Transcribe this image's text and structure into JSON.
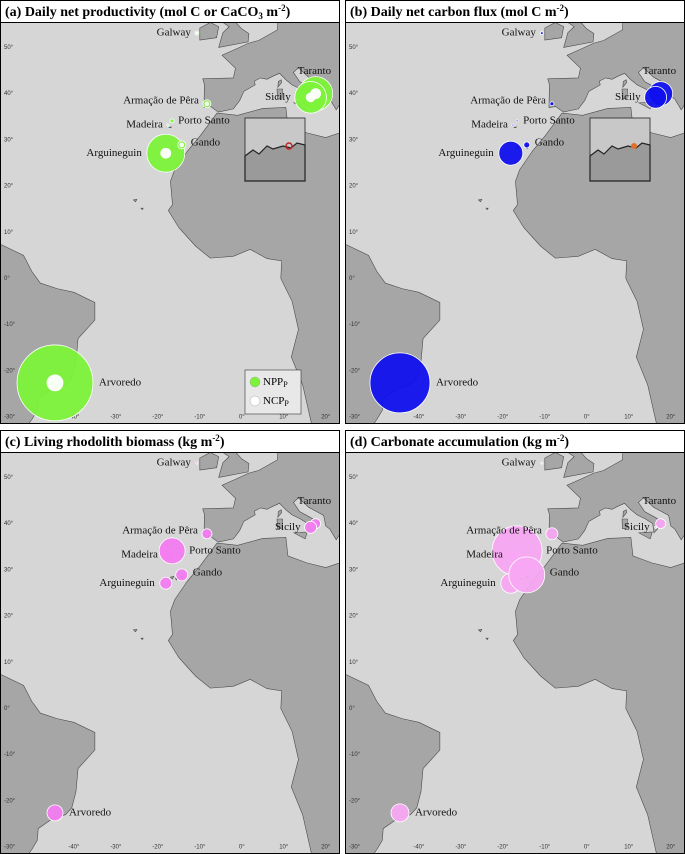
{
  "map": {
    "xlim": [
      -57.6,
      23.4
    ],
    "ylim": [
      -31.5,
      55.5
    ],
    "xticks": [
      {
        "value": -40,
        "label": "-40°"
      },
      {
        "value": -30,
        "label": "-30°"
      },
      {
        "value": -20,
        "label": "-20°"
      },
      {
        "value": -10,
        "label": "-10°"
      },
      {
        "value": 0,
        "label": "0°"
      },
      {
        "value": 10,
        "label": "10°"
      },
      {
        "value": 20,
        "label": "20°"
      }
    ],
    "yticks": [
      {
        "value": 50,
        "label": "50°"
      },
      {
        "value": 40,
        "label": "40°"
      },
      {
        "value": 30,
        "label": "30°"
      },
      {
        "value": 20,
        "label": "20°"
      },
      {
        "value": 10,
        "label": "10°"
      },
      {
        "value": 0,
        "label": "0°"
      },
      {
        "value": -10,
        "label": "-10°"
      },
      {
        "value": -20,
        "label": "-20°"
      },
      {
        "value": -30,
        "label": "-30°"
      }
    ]
  },
  "sites": [
    {
      "name": "Galway",
      "lon": -10.7,
      "lat": 53.1
    },
    {
      "name": "Taranto",
      "lon": 17.6,
      "lat": 40.0
    },
    {
      "name": "Sicily",
      "lon": 16.4,
      "lat": 39.2
    },
    {
      "name": "Armação de Pêra",
      "lon": -8.3,
      "lat": 37.8
    },
    {
      "name": "Madeira",
      "lon": -17.6,
      "lat": 33.2
    },
    {
      "name": "Porto Santo",
      "lon": -16.6,
      "lat": 34.1
    },
    {
      "name": "Arguineguin",
      "lon": -18.1,
      "lat": 27.1
    },
    {
      "name": "Gando",
      "lon": -14.3,
      "lat": 28.9
    },
    {
      "name": "Arvoredo",
      "lon": -44.5,
      "lat": -22.6
    }
  ],
  "panels": [
    {
      "title": [
        "(a) Daily net productivity (mol C or CaCO",
        "3",
        " m",
        "-2",
        ")"
      ],
      "series": [
        {
          "name": "NPP",
          "name_sub": "P",
          "color": "#7cf23a",
          "values": [
            0.04,
            2.9,
            2.5,
            0.16,
            0.01,
            0.04,
            3.6,
            0.16,
            14.4
          ]
        },
        {
          "name": "NCP",
          "name_sub": "P",
          "color": "#ffffff",
          "values": [
            0.01,
            0.25,
            0.2,
            0.04,
            null,
            null,
            0.25,
            0.04,
            0.64
          ]
        }
      ]
    },
    {
      "title": [
        "(b) Daily net carbon flux (mol C m",
        "-2",
        ")"
      ],
      "series": [
        {
          "color": "#1010ee",
          "values": [
            0.02,
            1.44,
            1.2,
            0.04,
            0.01,
            0.01,
            1.44,
            0.09,
            9.0
          ]
        }
      ]
    },
    {
      "title": [
        "(c) Living rhodolith biomass (kg m",
        "-2",
        ")"
      ],
      "series": [
        {
          "color": "#f27cf0",
          "values": [
            0.01,
            0.25,
            0.36,
            0.25,
            0.49,
            1.69,
            0.36,
            0.36,
            0.64
          ]
        }
      ]
    },
    {
      "title": [
        "(d) Carbonate accumulation (kg m",
        "-2",
        ")"
      ],
      "series": [
        {
          "color": "#f7a6f2",
          "values": [
            0.01,
            0.25,
            0.01,
            0.36,
            0.49,
            6.25,
            1.0,
            3.24,
            0.81
          ]
        }
      ]
    }
  ]
}
